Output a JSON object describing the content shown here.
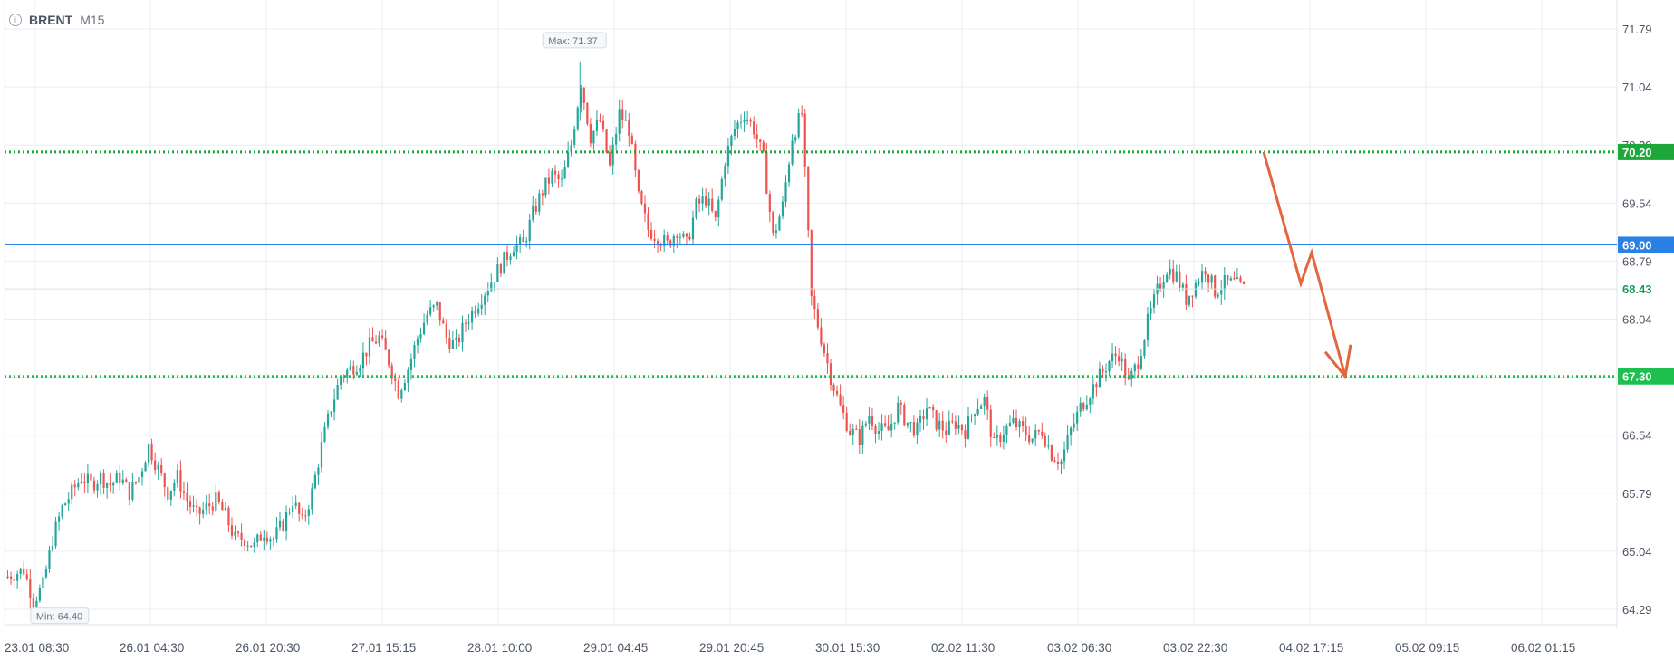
{
  "header": {
    "info_icon": "info-icon",
    "symbol": "BRENT",
    "timeframe": "M15"
  },
  "chart_data": {
    "type": "candlestick",
    "title": "BRENT M15",
    "y_ticks": [
      "71.79",
      "71.04",
      "70.29",
      "69.54",
      "68.79",
      "68.04",
      "67.29",
      "66.54",
      "65.79",
      "65.04",
      "64.29"
    ],
    "y_tick_values": [
      71.79,
      71.04,
      70.29,
      69.54,
      68.79,
      68.04,
      67.29,
      66.54,
      65.79,
      65.04,
      64.29
    ],
    "ylim": [
      64.0,
      72.0
    ],
    "x_ticks": [
      "23.01 08:30",
      "26.01 04:30",
      "26.01 20:30",
      "27.01 15:15",
      "28.01 10:00",
      "29.01 04:45",
      "29.01 20:45",
      "30.01 15:30",
      "02.02 11:30",
      "03.02 06:30",
      "03.02 22:30",
      "04.02 17:15",
      "05.02 09:15",
      "06.02 01:15"
    ],
    "grid": true,
    "colors": {
      "up": "#26a69a",
      "down": "#ef5350",
      "grid": "#e8edf5",
      "axis_text": "#4b5563"
    },
    "price_path": [
      [
        0,
        64.7
      ],
      [
        2,
        64.8
      ],
      [
        3,
        64.4
      ],
      [
        4,
        64.6
      ],
      [
        5,
        65.2
      ],
      [
        6,
        65.6
      ],
      [
        7,
        65.8
      ],
      [
        8,
        66.0
      ],
      [
        9,
        65.9
      ],
      [
        10,
        66.0
      ],
      [
        11,
        65.9
      ],
      [
        12,
        66.0
      ],
      [
        13,
        65.8
      ],
      [
        14,
        66.0
      ],
      [
        15,
        66.4
      ],
      [
        16,
        66.1
      ],
      [
        17,
        65.8
      ],
      [
        18,
        66.0
      ],
      [
        19,
        65.7
      ],
      [
        20,
        65.5
      ],
      [
        21,
        65.6
      ],
      [
        22,
        65.7
      ],
      [
        23,
        65.5
      ],
      [
        24,
        65.2
      ],
      [
        25,
        65.2
      ],
      [
        26,
        65.1
      ],
      [
        27,
        65.3
      ],
      [
        28,
        65.2
      ],
      [
        29,
        65.4
      ],
      [
        30,
        65.7
      ],
      [
        31,
        65.4
      ],
      [
        32,
        65.8
      ],
      [
        33,
        66.4
      ],
      [
        34,
        66.9
      ],
      [
        35,
        67.3
      ],
      [
        36,
        67.4
      ],
      [
        37,
        67.5
      ],
      [
        38,
        67.7
      ],
      [
        39,
        67.8
      ],
      [
        40,
        67.5
      ],
      [
        41,
        67.1
      ],
      [
        42,
        67.4
      ],
      [
        43,
        67.8
      ],
      [
        44,
        68.1
      ],
      [
        45,
        68.2
      ],
      [
        46,
        67.8
      ],
      [
        47,
        67.7
      ],
      [
        48,
        68.0
      ],
      [
        49,
        68.2
      ],
      [
        50,
        68.4
      ],
      [
        51,
        68.6
      ],
      [
        52,
        68.8
      ],
      [
        53,
        69.0
      ],
      [
        54,
        69.0
      ],
      [
        55,
        69.4
      ],
      [
        56,
        69.7
      ],
      [
        57,
        69.9
      ],
      [
        58,
        69.8
      ],
      [
        59,
        70.3
      ],
      [
        60,
        71.1
      ],
      [
        61,
        70.4
      ],
      [
        62,
        70.6
      ],
      [
        63,
        70.0
      ],
      [
        64,
        70.7
      ],
      [
        65,
        70.5
      ],
      [
        66,
        69.6
      ],
      [
        67,
        69.2
      ],
      [
        68,
        69.1
      ],
      [
        69,
        69.0
      ],
      [
        70,
        69.2
      ],
      [
        71,
        69.0
      ],
      [
        72,
        69.5
      ],
      [
        73,
        69.6
      ],
      [
        74,
        69.3
      ],
      [
        75,
        70.1
      ],
      [
        76,
        70.5
      ],
      [
        77,
        70.7
      ],
      [
        78,
        70.5
      ],
      [
        79,
        70.1
      ],
      [
        80,
        69.1
      ],
      [
        81,
        69.5
      ],
      [
        82,
        70.4
      ],
      [
        83,
        70.7
      ],
      [
        84,
        68.3
      ],
      [
        85,
        67.8
      ],
      [
        86,
        67.3
      ],
      [
        87,
        66.9
      ],
      [
        88,
        66.6
      ],
      [
        89,
        66.5
      ],
      [
        90,
        66.8
      ],
      [
        91,
        66.6
      ],
      [
        92,
        66.6
      ],
      [
        93,
        66.9
      ],
      [
        94,
        66.7
      ],
      [
        95,
        66.6
      ],
      [
        96,
        66.9
      ],
      [
        97,
        66.7
      ],
      [
        98,
        66.6
      ],
      [
        99,
        66.7
      ],
      [
        100,
        66.6
      ],
      [
        101,
        66.9
      ],
      [
        102,
        67.0
      ],
      [
        103,
        66.4
      ],
      [
        104,
        66.6
      ],
      [
        105,
        66.7
      ],
      [
        106,
        66.6
      ],
      [
        107,
        66.5
      ],
      [
        108,
        66.6
      ],
      [
        109,
        66.3
      ],
      [
        110,
        66.2
      ],
      [
        111,
        66.6
      ],
      [
        112,
        66.9
      ],
      [
        113,
        67.1
      ],
      [
        114,
        67.3
      ],
      [
        115,
        67.5
      ],
      [
        116,
        67.6
      ],
      [
        117,
        67.2
      ],
      [
        118,
        67.5
      ],
      [
        119,
        68.0
      ],
      [
        120,
        68.4
      ],
      [
        121,
        68.7
      ],
      [
        122,
        68.6
      ],
      [
        123,
        68.3
      ],
      [
        124,
        68.5
      ],
      [
        125,
        68.7
      ],
      [
        126,
        68.4
      ],
      [
        127,
        68.5
      ],
      [
        128,
        68.5
      ],
      [
        129,
        68.43
      ]
    ],
    "max_label": "Max: 71.37",
    "max_value": 71.37,
    "min_label": "Min: 64.40",
    "min_value": 64.4,
    "levels": [
      {
        "value": 70.2,
        "label": "70.20",
        "style": "dotted",
        "color": "#1ea73a"
      },
      {
        "value": 69.0,
        "label": "69.00",
        "style": "solid",
        "color": "#2a80e5"
      },
      {
        "value": 68.43,
        "label": "68.43",
        "style": "current",
        "color": "#1b9a5a"
      },
      {
        "value": 67.3,
        "label": "67.30",
        "style": "dotted",
        "color": "#1ebf4e"
      }
    ],
    "forecast_arrow": {
      "color": "#e2673f",
      "points_value": [
        70.2,
        68.5,
        68.9,
        67.3
      ]
    }
  }
}
